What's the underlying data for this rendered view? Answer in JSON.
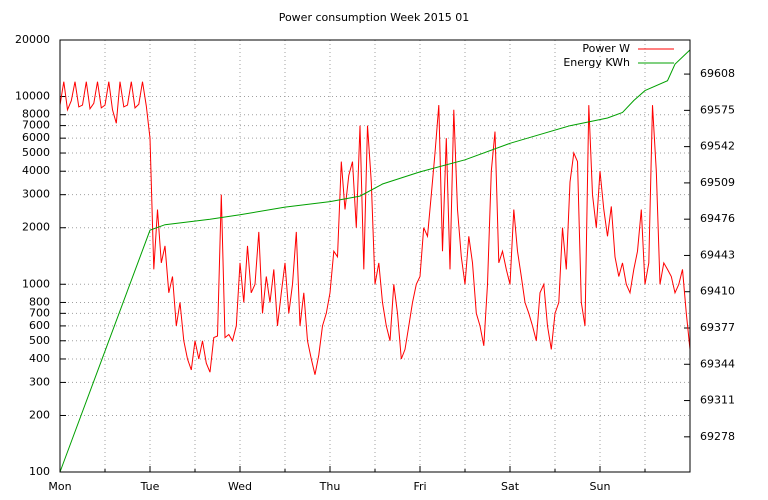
{
  "chart_data": {
    "type": "line",
    "title": "Power consumption Week 2015 01",
    "xlim": [
      0,
      168
    ],
    "xticks": [
      {
        "value": 0,
        "label": "Mon"
      },
      {
        "value": 24,
        "label": "Tue"
      },
      {
        "value": 48,
        "label": "Wed"
      },
      {
        "value": 72,
        "label": "Thu"
      },
      {
        "value": 96,
        "label": "Fri"
      },
      {
        "value": 120,
        "label": "Sat"
      },
      {
        "value": 144,
        "label": "Sun"
      }
    ],
    "xminorticks": [
      12,
      36,
      60,
      84,
      108,
      132,
      156
    ],
    "ylim": [
      100,
      20000
    ],
    "yscale": "log",
    "yticks": [
      100,
      200,
      300,
      400,
      500,
      600,
      700,
      800,
      1000,
      2000,
      3000,
      4000,
      5000,
      6000,
      7000,
      8000,
      10000,
      20000
    ],
    "y2lim": [
      69246,
      69639
    ],
    "y2ticks": [
      69278,
      69311,
      69344,
      69377,
      69410,
      69443,
      69476,
      69509,
      69542,
      69575,
      69608
    ],
    "grid": true,
    "legend": "top-right",
    "series": [
      {
        "name": "Power W",
        "color": "#ff0000",
        "axis": "y",
        "x": [
          0,
          1,
          2,
          3,
          4,
          5,
          6,
          7,
          8,
          9,
          10,
          11,
          12,
          13,
          14,
          15,
          16,
          17,
          18,
          19,
          20,
          21,
          22,
          23,
          24,
          25,
          26,
          27,
          28,
          29,
          30,
          31,
          32,
          33,
          34,
          35,
          36,
          37,
          38,
          39,
          40,
          41,
          42,
          43,
          44,
          45,
          46,
          47,
          48,
          49,
          50,
          51,
          52,
          53,
          54,
          55,
          56,
          57,
          58,
          59,
          60,
          61,
          62,
          63,
          64,
          65,
          66,
          67,
          68,
          69,
          70,
          71,
          72,
          73,
          74,
          75,
          76,
          77,
          78,
          79,
          80,
          81,
          82,
          83,
          84,
          85,
          86,
          87,
          88,
          89,
          90,
          91,
          92,
          93,
          94,
          95,
          96,
          97,
          98,
          99,
          100,
          101,
          102,
          103,
          104,
          105,
          106,
          107,
          108,
          109,
          110,
          111,
          112,
          113,
          114,
          115,
          116,
          117,
          118,
          119,
          120,
          121,
          122,
          123,
          124,
          125,
          126,
          127,
          128,
          129,
          130,
          131,
          132,
          133,
          134,
          135,
          136,
          137,
          138,
          139,
          140,
          141,
          142,
          143,
          144,
          145,
          146,
          147,
          148,
          149,
          150,
          151,
          152,
          153,
          154,
          155,
          156,
          157,
          158,
          159,
          160,
          161,
          162,
          163,
          164,
          165,
          166,
          167,
          168
        ],
        "values": [
          9000,
          12000,
          8500,
          9500,
          12000,
          8800,
          9000,
          12000,
          8600,
          9200,
          12000,
          8700,
          9000,
          12000,
          8500,
          7200,
          12000,
          8800,
          9000,
          12000,
          8700,
          9100,
          12000,
          8900,
          6000,
          1200,
          2500,
          1300,
          1600,
          900,
          1100,
          600,
          800,
          500,
          400,
          350,
          500,
          400,
          500,
          380,
          340,
          520,
          530,
          3000,
          520,
          540,
          500,
          600,
          1300,
          800,
          1600,
          900,
          1000,
          1900,
          700,
          1100,
          800,
          1200,
          600,
          900,
          1300,
          700,
          1000,
          1900,
          600,
          900,
          500,
          400,
          330,
          420,
          600,
          700,
          900,
          1500,
          1400,
          4500,
          2500,
          3800,
          4500,
          2000,
          7000,
          1200,
          7000,
          3500,
          1000,
          1300,
          800,
          600,
          500,
          1000,
          700,
          400,
          450,
          600,
          800,
          1000,
          1100,
          2000,
          1800,
          3000,
          5000,
          9000,
          1500,
          6000,
          1200,
          8500,
          2500,
          1400,
          1000,
          1800,
          1300,
          700,
          600,
          470,
          1000,
          4000,
          6500,
          1300,
          1500,
          1200,
          1000,
          2500,
          1500,
          1100,
          800,
          700,
          600,
          500,
          900,
          1000,
          600,
          450,
          700,
          800,
          2000,
          1200,
          3500,
          5000,
          4500,
          800,
          600,
          9000,
          3000,
          2000,
          4000,
          2500,
          1800,
          2600,
          1400,
          1100,
          1300,
          1000,
          900,
          1200,
          1500,
          2500,
          1000,
          1300,
          9000,
          4000,
          1000,
          1300,
          1200,
          1100,
          900,
          1000,
          1200,
          700,
          450
        ]
      },
      {
        "name": "Energy KWh",
        "color": "#00a000",
        "axis": "y2",
        "x": [
          0,
          24,
          28,
          40,
          48,
          60,
          72,
          80,
          86,
          96,
          108,
          120,
          126,
          136,
          146,
          150,
          153,
          156,
          162,
          164,
          168
        ],
        "values": [
          69246,
          69466,
          69471,
          69476,
          69480,
          69487,
          69492,
          69497,
          69508,
          69519,
          69530,
          69545,
          69551,
          69561,
          69568,
          69573,
          69584,
          69593,
          69602,
          69617,
          69630
        ]
      }
    ]
  }
}
